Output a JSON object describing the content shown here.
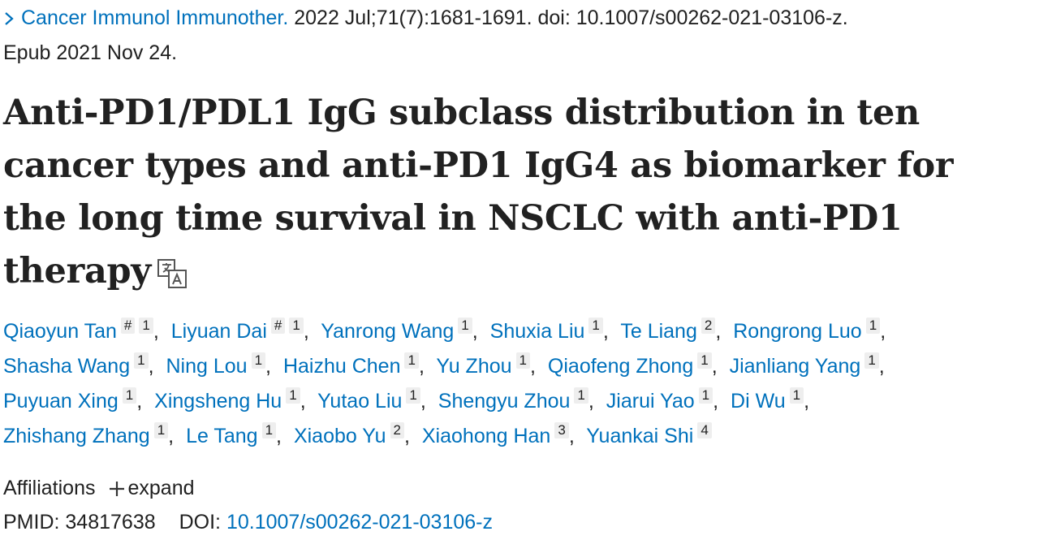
{
  "citation": {
    "journal": "Cancer Immunol Immunother.",
    "details": "2022 Jul;71(7):1681-1691. doi: 10.1007/s00262-021-03106-z.",
    "epub": "Epub 2021 Nov 24."
  },
  "title": "Anti-PD1/PDL1 IgG subclass distribution in ten cancer types and anti-PD1 IgG4 as biomarker for the long time survival in NSCLC with anti-PD1 therapy",
  "author_separator": ",",
  "authors": [
    {
      "name": "Qiaoyun Tan",
      "marks": [
        "#",
        "1"
      ]
    },
    {
      "name": "Liyuan Dai",
      "marks": [
        "#",
        "1"
      ]
    },
    {
      "name": "Yanrong Wang",
      "marks": [
        "1"
      ]
    },
    {
      "name": "Shuxia Liu",
      "marks": [
        "1"
      ]
    },
    {
      "name": "Te Liang",
      "marks": [
        "2"
      ]
    },
    {
      "name": "Rongrong Luo",
      "marks": [
        "1"
      ]
    },
    {
      "name": "Shasha Wang",
      "marks": [
        "1"
      ]
    },
    {
      "name": "Ning Lou",
      "marks": [
        "1"
      ]
    },
    {
      "name": "Haizhu Chen",
      "marks": [
        "1"
      ]
    },
    {
      "name": "Yu Zhou",
      "marks": [
        "1"
      ]
    },
    {
      "name": "Qiaofeng Zhong",
      "marks": [
        "1"
      ]
    },
    {
      "name": "Jianliang Yang",
      "marks": [
        "1"
      ]
    },
    {
      "name": "Puyuan Xing",
      "marks": [
        "1"
      ]
    },
    {
      "name": "Xingsheng Hu",
      "marks": [
        "1"
      ]
    },
    {
      "name": "Yutao Liu",
      "marks": [
        "1"
      ]
    },
    {
      "name": "Shengyu Zhou",
      "marks": [
        "1"
      ]
    },
    {
      "name": "Jiarui Yao",
      "marks": [
        "1"
      ]
    },
    {
      "name": "Di Wu",
      "marks": [
        "1"
      ]
    },
    {
      "name": "Zhishang Zhang",
      "marks": [
        "1"
      ]
    },
    {
      "name": "Le Tang",
      "marks": [
        "1"
      ]
    },
    {
      "name": "Xiaobo Yu",
      "marks": [
        "2"
      ]
    },
    {
      "name": "Xiaohong Han",
      "marks": [
        "3"
      ]
    },
    {
      "name": "Yuankai Shi",
      "marks": [
        "4"
      ]
    }
  ],
  "affiliations": {
    "label": "Affiliations",
    "action": "expand"
  },
  "ids": {
    "pmid_label": "PMID:",
    "pmid": "34817638",
    "doi_label": "DOI:",
    "doi": "10.1007/s00262-021-03106-z"
  }
}
